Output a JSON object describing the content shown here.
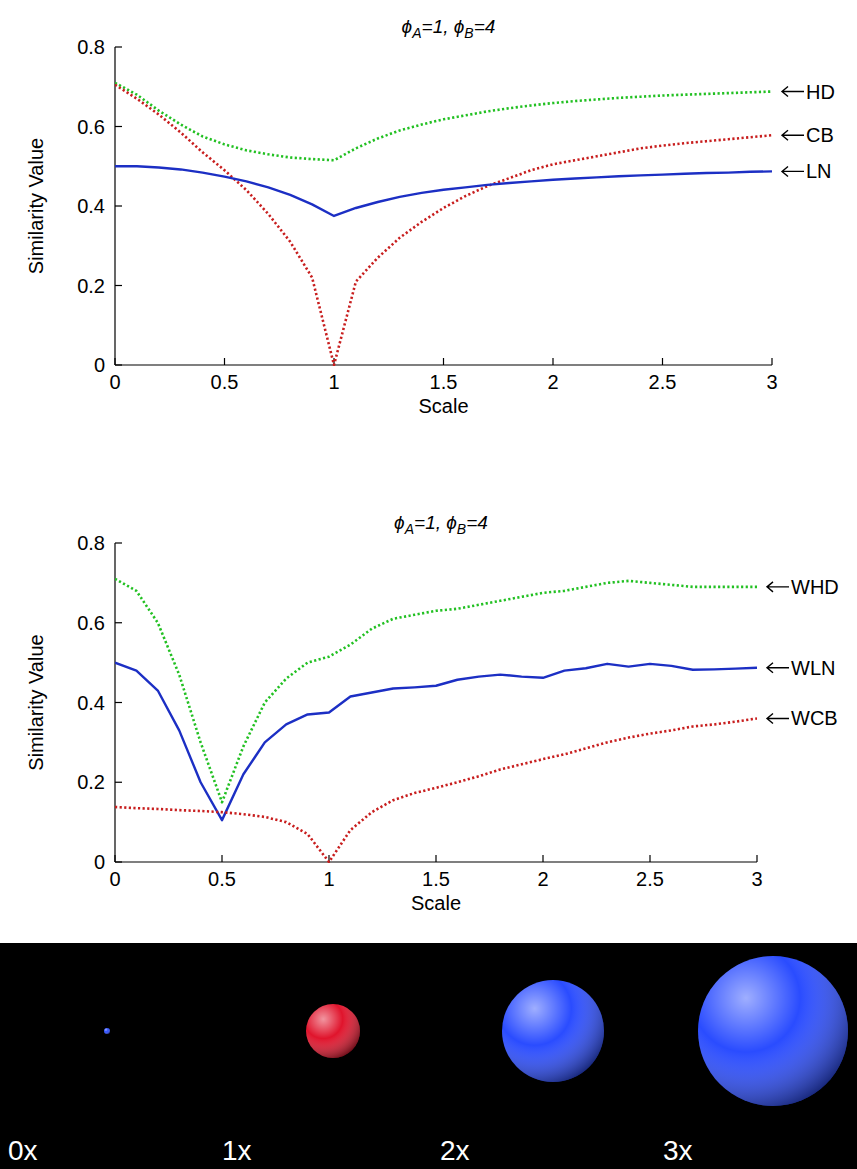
{
  "chart_data": [
    {
      "type": "line",
      "title": "ϕA=1, ϕB=4",
      "x_label": "Scale",
      "y_label": "Similarity Value",
      "xlim": [
        0,
        3
      ],
      "ylim": [
        0,
        0.8
      ],
      "xticks": [
        0,
        0.5,
        1,
        1.5,
        2,
        2.5,
        3
      ],
      "yticks": [
        0,
        0.2,
        0.4,
        0.6,
        0.8
      ],
      "grid": false,
      "legend": "right",
      "x": [
        0,
        0.1,
        0.2,
        0.3,
        0.4,
        0.5,
        0.6,
        0.7,
        0.8,
        0.9,
        1,
        1.1,
        1.2,
        1.3,
        1.4,
        1.5,
        1.6,
        1.7,
        1.8,
        1.9,
        2,
        2.1,
        2.2,
        2.3,
        2.4,
        2.5,
        2.6,
        2.7,
        2.8,
        2.9,
        3
      ],
      "series": [
        {
          "name": "HD",
          "color": "#22c022",
          "line_style": "dotted",
          "values": [
            0.71,
            0.68,
            0.64,
            0.605,
            0.575,
            0.555,
            0.54,
            0.53,
            0.522,
            0.518,
            0.515,
            0.545,
            0.57,
            0.59,
            0.605,
            0.618,
            0.628,
            0.638,
            0.646,
            0.653,
            0.659,
            0.664,
            0.668,
            0.672,
            0.675,
            0.678,
            0.68,
            0.682,
            0.684,
            0.686,
            0.688
          ]
        },
        {
          "name": "CB",
          "color": "#c81e1e",
          "line_style": "dotted",
          "values": [
            0.705,
            0.67,
            0.63,
            0.585,
            0.535,
            0.49,
            0.44,
            0.38,
            0.31,
            0.22,
            0,
            0.21,
            0.27,
            0.32,
            0.36,
            0.395,
            0.425,
            0.45,
            0.47,
            0.49,
            0.505,
            0.515,
            0.525,
            0.535,
            0.545,
            0.552,
            0.558,
            0.563,
            0.568,
            0.573,
            0.578
          ]
        },
        {
          "name": "LN",
          "color": "#1c2fc4",
          "line_style": "solid",
          "values": [
            0.5,
            0.5,
            0.497,
            0.492,
            0.484,
            0.474,
            0.462,
            0.447,
            0.428,
            0.404,
            0.375,
            0.395,
            0.41,
            0.423,
            0.433,
            0.441,
            0.447,
            0.453,
            0.458,
            0.462,
            0.466,
            0.469,
            0.472,
            0.475,
            0.477,
            0.479,
            0.481,
            0.483,
            0.484,
            0.486,
            0.487
          ]
        }
      ]
    },
    {
      "type": "line",
      "title": "ϕA=1, ϕB=4",
      "x_label": "Scale",
      "y_label": "Similarity Value",
      "xlim": [
        0,
        3
      ],
      "ylim": [
        0,
        0.8
      ],
      "xticks": [
        0,
        0.5,
        1,
        1.5,
        2,
        2.5,
        3
      ],
      "yticks": [
        0,
        0.2,
        0.4,
        0.6,
        0.8
      ],
      "grid": false,
      "legend": "right",
      "x": [
        0,
        0.1,
        0.2,
        0.3,
        0.4,
        0.5,
        0.6,
        0.7,
        0.8,
        0.9,
        1,
        1.1,
        1.2,
        1.3,
        1.4,
        1.5,
        1.6,
        1.7,
        1.8,
        1.9,
        2,
        2.1,
        2.2,
        2.3,
        2.4,
        2.5,
        2.6,
        2.7,
        2.8,
        2.9,
        3
      ],
      "series": [
        {
          "name": "WHD",
          "color": "#22c022",
          "line_style": "dotted",
          "values": [
            0.71,
            0.68,
            0.6,
            0.47,
            0.3,
            0.15,
            0.29,
            0.4,
            0.46,
            0.5,
            0.515,
            0.545,
            0.585,
            0.61,
            0.62,
            0.63,
            0.635,
            0.645,
            0.655,
            0.665,
            0.675,
            0.68,
            0.69,
            0.7,
            0.705,
            0.7,
            0.695,
            0.69,
            0.69,
            0.69,
            0.69
          ]
        },
        {
          "name": "WLN",
          "color": "#1c2fc4",
          "line_style": "solid",
          "values": [
            0.5,
            0.48,
            0.43,
            0.33,
            0.2,
            0.105,
            0.22,
            0.3,
            0.345,
            0.37,
            0.375,
            0.415,
            0.425,
            0.435,
            0.438,
            0.442,
            0.457,
            0.465,
            0.47,
            0.465,
            0.462,
            0.48,
            0.486,
            0.497,
            0.49,
            0.497,
            0.492,
            0.482,
            0.483,
            0.485,
            0.487
          ]
        },
        {
          "name": "WCB",
          "color": "#c81e1e",
          "line_style": "dotted",
          "values": [
            0.138,
            0.135,
            0.133,
            0.13,
            0.128,
            0.125,
            0.12,
            0.113,
            0.1,
            0.07,
            0,
            0.08,
            0.125,
            0.155,
            0.173,
            0.186,
            0.2,
            0.215,
            0.232,
            0.245,
            0.258,
            0.27,
            0.285,
            0.3,
            0.312,
            0.322,
            0.33,
            0.34,
            0.345,
            0.352,
            0.36
          ]
        }
      ]
    }
  ],
  "illustration": {
    "items": [
      {
        "label": "0x",
        "scale": 0,
        "color": "#2a4cff"
      },
      {
        "label": "1x",
        "scale": 1,
        "color": "#e0142c"
      },
      {
        "label": "2x",
        "scale": 2,
        "color": "#2a4cff"
      },
      {
        "label": "3x",
        "scale": 3,
        "color": "#2a4cff"
      }
    ]
  }
}
